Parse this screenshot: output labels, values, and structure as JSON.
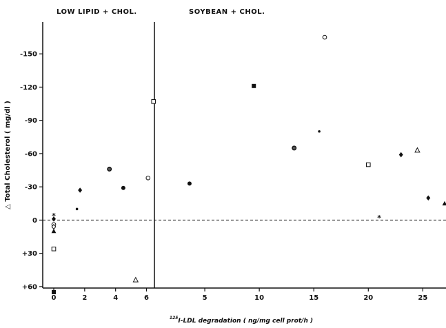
{
  "chart_data": {
    "type": "scatter",
    "panels": [
      {
        "title": "LOW LIPID + CHOL.",
        "xlim": [
          0,
          6.2
        ],
        "x_ticks": [
          0,
          2,
          4,
          6
        ],
        "points": [
          {
            "x": 0,
            "y": 4,
            "marker": "star"
          },
          {
            "x": 0,
            "y": 1,
            "marker": "diamond"
          },
          {
            "x": 0,
            "y": -4,
            "marker": "circle-open"
          },
          {
            "x": 0,
            "y": -6,
            "marker": "diamond-open"
          },
          {
            "x": 0,
            "y": -10,
            "marker": "triangle-filled"
          },
          {
            "x": 0,
            "y": -26,
            "marker": "square-open"
          },
          {
            "x": 0,
            "y": -65,
            "marker": "square-filled"
          },
          {
            "x": 1.5,
            "y": 10,
            "marker": "small-dot"
          },
          {
            "x": 1.7,
            "y": 27,
            "marker": "diamond"
          },
          {
            "x": 3.6,
            "y": 46,
            "marker": "circle-ring"
          },
          {
            "x": 4.5,
            "y": 29,
            "marker": "circle-filled"
          },
          {
            "x": 5.3,
            "y": -54,
            "marker": "triangle-open"
          },
          {
            "x": 6.1,
            "y": 38,
            "marker": "circle-open"
          }
        ]
      },
      {
        "title": "SOYBEAN + CHOL.",
        "xlim": [
          0,
          27
        ],
        "x_ticks": [
          5,
          10,
          15,
          20,
          25
        ],
        "points": [
          {
            "x": 0.3,
            "y": 107,
            "marker": "square-open"
          },
          {
            "x": 3.6,
            "y": 33,
            "marker": "circle-filled"
          },
          {
            "x": 9.5,
            "y": 121,
            "marker": "square-filled"
          },
          {
            "x": 13.2,
            "y": 65,
            "marker": "circle-ring"
          },
          {
            "x": 15.5,
            "y": 80,
            "marker": "small-dot"
          },
          {
            "x": 16.0,
            "y": 165,
            "marker": "circle-open"
          },
          {
            "x": 20.0,
            "y": 50,
            "marker": "square-open"
          },
          {
            "x": 21.0,
            "y": 2,
            "marker": "star"
          },
          {
            "x": 23.0,
            "y": 59,
            "marker": "diamond"
          },
          {
            "x": 24.5,
            "y": 63,
            "marker": "triangle-open"
          },
          {
            "x": 25.5,
            "y": 20,
            "marker": "diamond"
          },
          {
            "x": 27,
            "y": 15,
            "marker": "triangle-filled"
          }
        ]
      }
    ],
    "ylabel": "△ Total Cholesterol ( mg/dl )",
    "ylim": [
      -70,
      170
    ],
    "y_ticks": [
      {
        "v": 150,
        "label": "-150"
      },
      {
        "v": 120,
        "label": "-120"
      },
      {
        "v": 90,
        "label": "-90"
      },
      {
        "v": 60,
        "label": "-60"
      },
      {
        "v": 30,
        "label": "-30"
      },
      {
        "v": 0,
        "label": "0"
      },
      {
        "v": -30,
        "label": "+30"
      },
      {
        "v": -60,
        "label": "+60"
      }
    ],
    "xlabel_sup": "125",
    "xlabel": "I-LDL degradation ( ng/mg cell prot/h )",
    "zero_line": "dashed",
    "grid": false
  }
}
